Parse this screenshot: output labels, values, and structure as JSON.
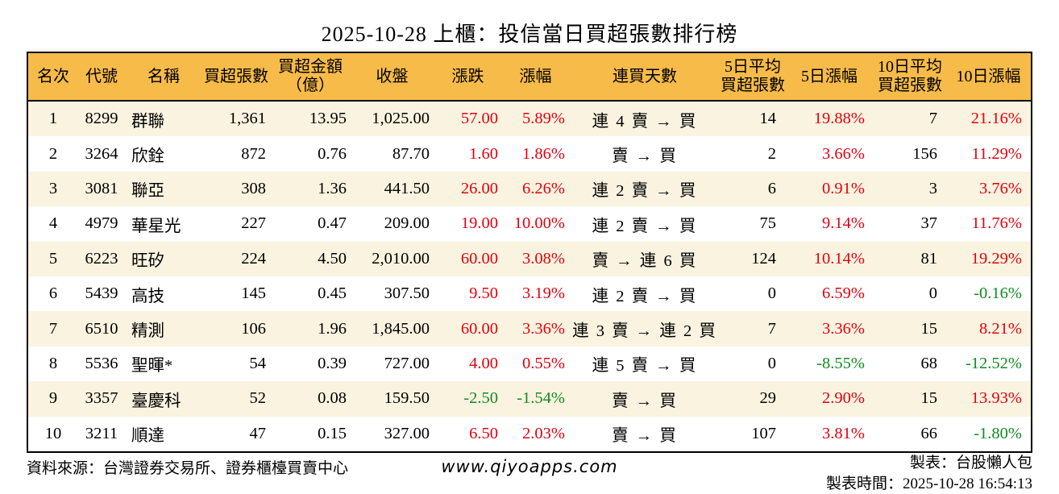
{
  "title": "2025-10-28 上櫃：投信當日買超張數排行榜",
  "colors": {
    "header_bg": "#f7bb49",
    "row_alt_bg": "#faf3e0",
    "up_red": "#e3000f",
    "down_green": "#128a22",
    "border": "#000000"
  },
  "table": {
    "headers": [
      {
        "line1": "名次",
        "line2": ""
      },
      {
        "line1": "代號",
        "line2": ""
      },
      {
        "line1": "名稱",
        "line2": ""
      },
      {
        "line1": "買超張數",
        "line2": ""
      },
      {
        "line1": "買超金額",
        "line2": "（億）"
      },
      {
        "line1": "收盤",
        "line2": ""
      },
      {
        "line1": "漲跌",
        "line2": ""
      },
      {
        "line1": "漲幅",
        "line2": ""
      },
      {
        "line1": "連買天數",
        "line2": ""
      },
      {
        "line1": "5日平均",
        "line2": "買超張數"
      },
      {
        "line1": "5日漲幅",
        "line2": ""
      },
      {
        "line1": "10日平均",
        "line2": "買超張數"
      },
      {
        "line1": "10日漲幅",
        "line2": ""
      }
    ],
    "rows": [
      {
        "rank": "1",
        "code": "8299",
        "name": "群聯",
        "net_buy": "1,361",
        "amount": "13.95",
        "close": "1,025.00",
        "change": "57.00",
        "change_dir": "up",
        "change_pct": "5.89%",
        "streak": "連 4 賣 → 買",
        "avg5": "14",
        "pct5": "19.88%",
        "pct5_dir": "up",
        "avg10": "7",
        "pct10": "21.16%",
        "pct10_dir": "up"
      },
      {
        "rank": "2",
        "code": "3264",
        "name": "欣銓",
        "net_buy": "872",
        "amount": "0.76",
        "close": "87.70",
        "change": "1.60",
        "change_dir": "up",
        "change_pct": "1.86%",
        "streak": "賣 → 買",
        "avg5": "2",
        "pct5": "3.66%",
        "pct5_dir": "up",
        "avg10": "156",
        "pct10": "11.29%",
        "pct10_dir": "up"
      },
      {
        "rank": "3",
        "code": "3081",
        "name": "聯亞",
        "net_buy": "308",
        "amount": "1.36",
        "close": "441.50",
        "change": "26.00",
        "change_dir": "up",
        "change_pct": "6.26%",
        "streak": "連 2 賣 → 買",
        "avg5": "6",
        "pct5": "0.91%",
        "pct5_dir": "up",
        "avg10": "3",
        "pct10": "3.76%",
        "pct10_dir": "up"
      },
      {
        "rank": "4",
        "code": "4979",
        "name": "華星光",
        "net_buy": "227",
        "amount": "0.47",
        "close": "209.00",
        "change": "19.00",
        "change_dir": "up",
        "change_pct": "10.00%",
        "streak": "連 2 賣 → 買",
        "avg5": "75",
        "pct5": "9.14%",
        "pct5_dir": "up",
        "avg10": "37",
        "pct10": "11.76%",
        "pct10_dir": "up"
      },
      {
        "rank": "5",
        "code": "6223",
        "name": "旺矽",
        "net_buy": "224",
        "amount": "4.50",
        "close": "2,010.00",
        "change": "60.00",
        "change_dir": "up",
        "change_pct": "3.08%",
        "streak": "賣 → 連 6 買",
        "avg5": "124",
        "pct5": "10.14%",
        "pct5_dir": "up",
        "avg10": "81",
        "pct10": "19.29%",
        "pct10_dir": "up"
      },
      {
        "rank": "6",
        "code": "5439",
        "name": "高技",
        "net_buy": "145",
        "amount": "0.45",
        "close": "307.50",
        "change": "9.50",
        "change_dir": "up",
        "change_pct": "3.19%",
        "streak": "連 2 賣 → 買",
        "avg5": "0",
        "pct5": "6.59%",
        "pct5_dir": "up",
        "avg10": "0",
        "pct10": "-0.16%",
        "pct10_dir": "down"
      },
      {
        "rank": "7",
        "code": "6510",
        "name": "精測",
        "net_buy": "106",
        "amount": "1.96",
        "close": "1,845.00",
        "change": "60.00",
        "change_dir": "up",
        "change_pct": "3.36%",
        "streak": "連 3 賣 → 連 2 買",
        "avg5": "7",
        "pct5": "3.36%",
        "pct5_dir": "up",
        "avg10": "15",
        "pct10": "8.21%",
        "pct10_dir": "up"
      },
      {
        "rank": "8",
        "code": "5536",
        "name": "聖暉*",
        "net_buy": "54",
        "amount": "0.39",
        "close": "727.00",
        "change": "4.00",
        "change_dir": "up",
        "change_pct": "0.55%",
        "streak": "連 5 賣 → 買",
        "avg5": "0",
        "pct5": "-8.55%",
        "pct5_dir": "down",
        "avg10": "68",
        "pct10": "-12.52%",
        "pct10_dir": "down"
      },
      {
        "rank": "9",
        "code": "3357",
        "name": "臺慶科",
        "net_buy": "52",
        "amount": "0.08",
        "close": "159.50",
        "change": "-2.50",
        "change_dir": "down",
        "change_pct": "-1.54%",
        "streak": "賣 → 買",
        "avg5": "29",
        "pct5": "2.90%",
        "pct5_dir": "up",
        "avg10": "15",
        "pct10": "13.93%",
        "pct10_dir": "up"
      },
      {
        "rank": "10",
        "code": "3211",
        "name": "順達",
        "net_buy": "47",
        "amount": "0.15",
        "close": "327.00",
        "change": "6.50",
        "change_dir": "up",
        "change_pct": "2.03%",
        "streak": "賣 → 買",
        "avg5": "107",
        "pct5": "3.81%",
        "pct5_dir": "up",
        "avg10": "66",
        "pct10": "-1.80%",
        "pct10_dir": "down"
      }
    ]
  },
  "footer": {
    "source": "資料來源：台灣證券交易所、證券櫃檯買賣中心",
    "website": "www.qiyoapps.com",
    "maker": "製表：台股懶人包",
    "time": "製表時間：2025-10-28 16:54:13"
  }
}
